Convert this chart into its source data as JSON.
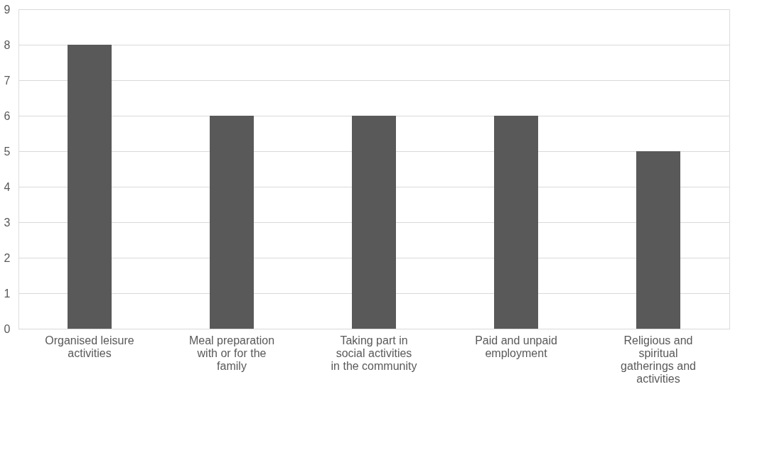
{
  "chart_data": {
    "type": "bar",
    "categories": [
      "Organised leisure activities",
      "Meal preparation with or for the family",
      "Taking part in social activities in the community",
      "Paid and unpaid employment",
      "Religious and spiritual gatherings and activities"
    ],
    "values": [
      8,
      6,
      6,
      6,
      5
    ],
    "color": "#595959",
    "ylim": [
      0,
      9
    ],
    "yticks": [
      0,
      1,
      2,
      3,
      4,
      5,
      6,
      7,
      8,
      9
    ],
    "grid": "y"
  }
}
